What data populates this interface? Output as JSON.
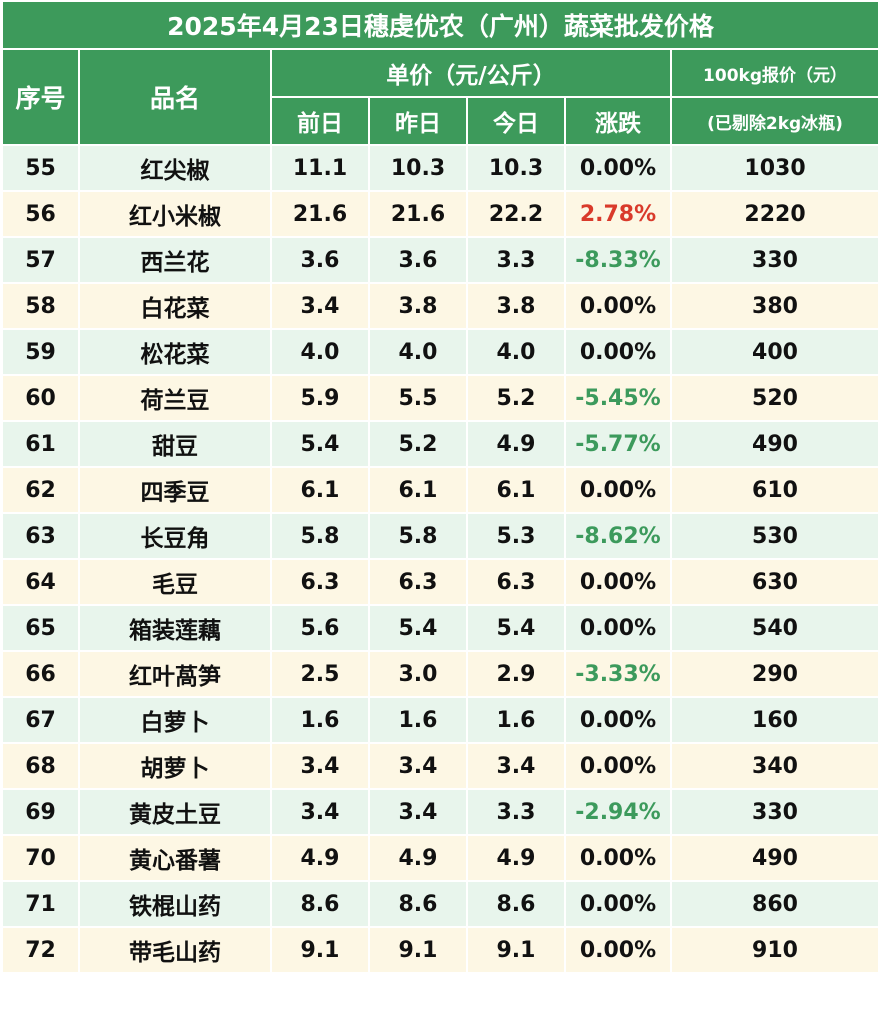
{
  "title": "2025年4月23日穗虔优农（广州）蔬菜批发价格",
  "headers": {
    "index": "序号",
    "name": "品名",
    "unit_price_group": "单价（元/公斤）",
    "prev_day": "前日",
    "yesterday": "昨日",
    "today": "今日",
    "change": "涨跌",
    "quote_top": "100kg报价（元）",
    "quote_bottom": "(已剔除2kg冰瓶)"
  },
  "colors": {
    "header_green": "#3d9a5b",
    "row_green": "#e8f5ec",
    "row_cream": "#fdf7e4",
    "up_red": "#d93a2b",
    "down_green": "#3c9a5c"
  },
  "rows": [
    {
      "no": "55",
      "name": "红尖椒",
      "prev": "11.1",
      "yest": "10.3",
      "today": "10.3",
      "change": "0.00%",
      "trend": "flat",
      "quote": "1030"
    },
    {
      "no": "56",
      "name": "红小米椒",
      "prev": "21.6",
      "yest": "21.6",
      "today": "22.2",
      "change": "2.78%",
      "trend": "up",
      "quote": "2220"
    },
    {
      "no": "57",
      "name": "西兰花",
      "prev": "3.6",
      "yest": "3.6",
      "today": "3.3",
      "change": "-8.33%",
      "trend": "down",
      "quote": "330"
    },
    {
      "no": "58",
      "name": "白花菜",
      "prev": "3.4",
      "yest": "3.8",
      "today": "3.8",
      "change": "0.00%",
      "trend": "flat",
      "quote": "380"
    },
    {
      "no": "59",
      "name": "松花菜",
      "prev": "4.0",
      "yest": "4.0",
      "today": "4.0",
      "change": "0.00%",
      "trend": "flat",
      "quote": "400"
    },
    {
      "no": "60",
      "name": "荷兰豆",
      "prev": "5.9",
      "yest": "5.5",
      "today": "5.2",
      "change": "-5.45%",
      "trend": "down",
      "quote": "520"
    },
    {
      "no": "61",
      "name": "甜豆",
      "prev": "5.4",
      "yest": "5.2",
      "today": "4.9",
      "change": "-5.77%",
      "trend": "down",
      "quote": "490"
    },
    {
      "no": "62",
      "name": "四季豆",
      "prev": "6.1",
      "yest": "6.1",
      "today": "6.1",
      "change": "0.00%",
      "trend": "flat",
      "quote": "610"
    },
    {
      "no": "63",
      "name": "长豆角",
      "prev": "5.8",
      "yest": "5.8",
      "today": "5.3",
      "change": "-8.62%",
      "trend": "down",
      "quote": "530"
    },
    {
      "no": "64",
      "name": "毛豆",
      "prev": "6.3",
      "yest": "6.3",
      "today": "6.3",
      "change": "0.00%",
      "trend": "flat",
      "quote": "630"
    },
    {
      "no": "65",
      "name": "箱装莲藕",
      "prev": "5.6",
      "yest": "5.4",
      "today": "5.4",
      "change": "0.00%",
      "trend": "flat",
      "quote": "540"
    },
    {
      "no": "66",
      "name": "红叶萵笋",
      "prev": "2.5",
      "yest": "3.0",
      "today": "2.9",
      "change": "-3.33%",
      "trend": "down",
      "quote": "290"
    },
    {
      "no": "67",
      "name": "白萝卜",
      "prev": "1.6",
      "yest": "1.6",
      "today": "1.6",
      "change": "0.00%",
      "trend": "flat",
      "quote": "160"
    },
    {
      "no": "68",
      "name": "胡萝卜",
      "prev": "3.4",
      "yest": "3.4",
      "today": "3.4",
      "change": "0.00%",
      "trend": "flat",
      "quote": "340"
    },
    {
      "no": "69",
      "name": "黄皮土豆",
      "prev": "3.4",
      "yest": "3.4",
      "today": "3.3",
      "change": "-2.94%",
      "trend": "down",
      "quote": "330"
    },
    {
      "no": "70",
      "name": "黄心番薯",
      "prev": "4.9",
      "yest": "4.9",
      "today": "4.9",
      "change": "0.00%",
      "trend": "flat",
      "quote": "490"
    },
    {
      "no": "71",
      "name": "铁棍山药",
      "prev": "8.6",
      "yest": "8.6",
      "today": "8.6",
      "change": "0.00%",
      "trend": "flat",
      "quote": "860"
    },
    {
      "no": "72",
      "name": "带毛山药",
      "prev": "9.1",
      "yest": "9.1",
      "today": "9.1",
      "change": "0.00%",
      "trend": "flat",
      "quote": "910"
    }
  ]
}
